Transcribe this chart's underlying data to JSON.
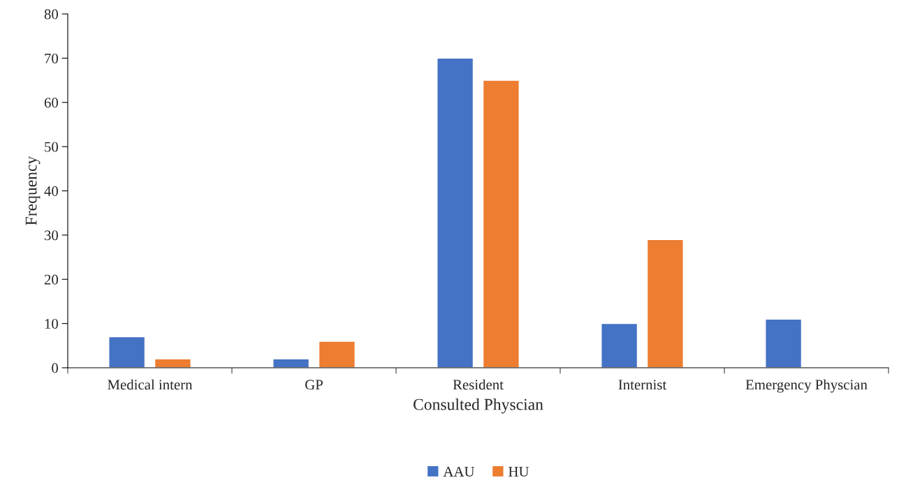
{
  "chart_data": {
    "type": "bar",
    "xlabel": "Consulted Physcian",
    "ylabel": "Frequency",
    "categories": [
      "Medical intern",
      "GP",
      "Resident",
      "Internist",
      "Emergency Physcian"
    ],
    "series": [
      {
        "name": "AAU",
        "color": "#4472c4",
        "values": [
          7,
          2,
          70,
          10,
          11
        ]
      },
      {
        "name": "HU",
        "color": "#ed7d31",
        "values": [
          2,
          6,
          65,
          29,
          null
        ]
      }
    ],
    "ylim": [
      0,
      80
    ],
    "yticks": [
      0,
      10,
      20,
      30,
      40,
      50,
      60,
      70,
      80
    ],
    "grid": false,
    "legend": "bottom"
  }
}
